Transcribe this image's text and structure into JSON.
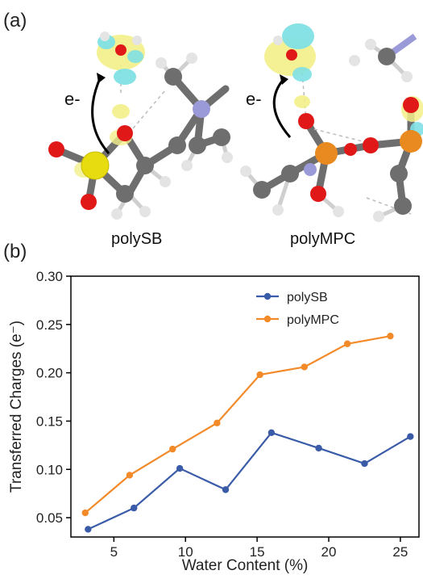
{
  "panels": {
    "a": {
      "label": "(a)",
      "molecules": [
        {
          "name": "polySB",
          "arrow_label": "e-"
        },
        {
          "name": "polyMPC",
          "arrow_label": "e-"
        }
      ]
    },
    "b": {
      "label": "(b)"
    }
  },
  "colors": {
    "polySB": "#3a5ba8",
    "polyMPC": "#f28a2a",
    "oxygen": "#e01818",
    "sulfur": "#e6dc10",
    "phosphorus": "#e88a20",
    "carbon": "#6e6e6e",
    "nitrogen": "#9a9ad8",
    "hydrogen": "#e4e4e4",
    "density_yellow": "#f3f08a",
    "density_cyan": "#7fe0e4"
  },
  "chart_data": {
    "type": "line",
    "xlabel": "Water Content (%)",
    "ylabel": "Transferred Charges (e⁻)",
    "xlim": [
      2,
      26.3
    ],
    "ylim": [
      0.03,
      0.3
    ],
    "xticks": [
      5,
      10,
      15,
      20,
      25
    ],
    "xtick_labels": [
      "5",
      "10",
      "15",
      "20",
      "25"
    ],
    "yticks": [
      0.05,
      0.1,
      0.15,
      0.2,
      0.25,
      0.3
    ],
    "ytick_labels": [
      "0.05",
      "0.10",
      "0.15",
      "0.20",
      "0.25",
      "0.30"
    ],
    "grid": false,
    "legend_position": "top-right",
    "series": [
      {
        "name": "polySB",
        "x": [
          3.2,
          6.4,
          9.6,
          12.8,
          16.0,
          19.3,
          22.5,
          25.7
        ],
        "y": [
          0.038,
          0.06,
          0.101,
          0.079,
          0.138,
          0.122,
          0.106,
          0.134
        ]
      },
      {
        "name": "polyMPC",
        "x": [
          3.0,
          6.1,
          9.1,
          12.2,
          15.2,
          18.3,
          21.3,
          24.3
        ],
        "y": [
          0.055,
          0.094,
          0.121,
          0.148,
          0.198,
          0.206,
          0.23,
          0.238
        ]
      }
    ]
  }
}
